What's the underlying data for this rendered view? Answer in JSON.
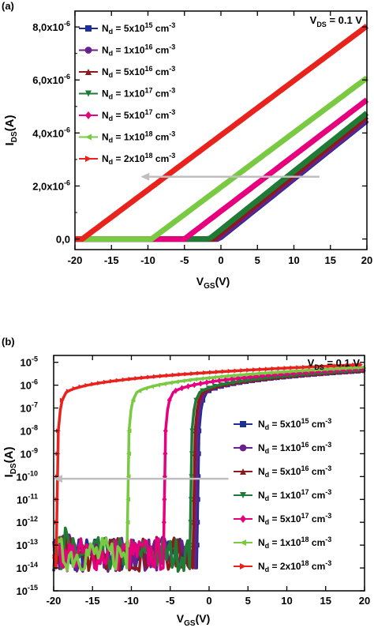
{
  "chart_data": [
    {
      "panel": "(a)",
      "type": "line",
      "xlabel": "V_GS(V)",
      "ylabel": "I_DS(A)",
      "annotation": "V_DS = 0.1 V",
      "xlim": [
        -20,
        20
      ],
      "ylim": [
        -4e-07,
        8.6e-06
      ],
      "yscale": "linear",
      "xticks": [
        -20,
        -15,
        -10,
        -5,
        0,
        5,
        10,
        15,
        20
      ],
      "xtick_labels": [
        "-20",
        "-15",
        "-10",
        "-5",
        "0",
        "5",
        "10",
        "15",
        "20"
      ],
      "yticks": [
        0,
        2e-06,
        4e-06,
        6e-06,
        8e-06
      ],
      "ytick_labels": [
        {
          "mant": "0,0",
          "exp": ""
        },
        {
          "mant": "2,0x10",
          "exp": "-6"
        },
        {
          "mant": "4,0x10",
          "exp": "-6"
        },
        {
          "mant": "6,0x10",
          "exp": "-6"
        },
        {
          "mant": "8,0x10",
          "exp": "-6"
        }
      ],
      "legend_position": "top-left",
      "arrow": {
        "from": [
          13.5,
          2.35e-06
        ],
        "to": [
          -11,
          2.35e-06
        ],
        "color": "#bfbfbf"
      },
      "series": [
        {
          "name": "Nd = 5x10^15 cm^-3",
          "legend": {
            "pre": "N",
            "sub": "d",
            "mid": " = 5x10",
            "sup": "15",
            "post": " cm",
            "sup2": "-3"
          },
          "color": "#1f2f8f",
          "marker": "square",
          "vth": -0.3,
          "slope": 2.2e-07
        },
        {
          "name": "Nd = 1x10^16 cm^-3",
          "legend": {
            "pre": "N",
            "sub": "d",
            "mid": " = 1x10",
            "sup": "16",
            "post": " cm",
            "sup2": "-3"
          },
          "color": "#6a1f8f",
          "marker": "circle",
          "vth": -0.5,
          "slope": 2.2e-07
        },
        {
          "name": "Nd = 5x10^16 cm^-3",
          "legend": {
            "pre": "N",
            "sub": "d",
            "mid": " = 5x10",
            "sup": "16",
            "post": " cm",
            "sup2": "-3"
          },
          "color": "#8b1a1a",
          "marker": "triangle-up",
          "vth": -1.0,
          "slope": 2.2e-07
        },
        {
          "name": "Nd = 1x10^17 cm^-3",
          "legend": {
            "pre": "N",
            "sub": "d",
            "mid": " = 1x10",
            "sup": "17",
            "post": " cm",
            "sup2": "-3"
          },
          "color": "#1e7a34",
          "marker": "triangle-down",
          "vth": -1.6,
          "slope": 2.2e-07
        },
        {
          "name": "Nd = 5x10^17 cm^-3",
          "legend": {
            "pre": "N",
            "sub": "d",
            "mid": " = 5x10",
            "sup": "17",
            "post": " cm",
            "sup2": "-3"
          },
          "color": "#e6007e",
          "marker": "diamond",
          "vth": -5.0,
          "slope": 2.1e-07
        },
        {
          "name": "Nd = 1x10^18 cm^-3",
          "legend": {
            "pre": "N",
            "sub": "d",
            "mid": " = 1x10",
            "sup": "18",
            "post": " cm",
            "sup2": "-3"
          },
          "color": "#7ac943",
          "marker": "triangle-left",
          "vth": -9.5,
          "slope": 2.06e-07
        },
        {
          "name": "Nd = 2x10^18 cm^-3",
          "legend": {
            "pre": "N",
            "sub": "d",
            "mid": " = 2x10",
            "sup": "18",
            "post": " cm",
            "sup2": "-3"
          },
          "color": "#e8231e",
          "marker": "triangle-right",
          "vth": -19.0,
          "slope": 2.06e-07
        }
      ]
    },
    {
      "panel": "(b)",
      "type": "line",
      "xlabel": "V_GS(V)",
      "ylabel": "I_DS(A)",
      "annotation": "V_DS = 0.1 V",
      "xlim": [
        -20,
        20
      ],
      "ylim": [
        1e-15,
        2e-05
      ],
      "yscale": "log",
      "xticks": [
        -20,
        -15,
        -10,
        -5,
        0,
        5,
        10,
        15,
        20
      ],
      "xtick_labels": [
        "-20",
        "-15",
        "-10",
        "-5",
        "0",
        "5",
        "10",
        "15",
        "20"
      ],
      "yticks_exp": [
        -15,
        -14,
        -13,
        -12,
        -11,
        -10,
        -9,
        -8,
        -7,
        -6,
        -5
      ],
      "legend_position": "center-right",
      "arrow": {
        "from": [
          2.5,
          8e-11
        ],
        "to": [
          -20,
          8e-11
        ],
        "color": "#bfbfbf"
      },
      "series": [
        {
          "name": "Nd = 5x10^15 cm^-3",
          "legend": {
            "pre": "N",
            "sub": "d",
            "mid": " = 5x10",
            "sup": "15",
            "post": " cm",
            "sup2": "-3"
          },
          "color": "#1f2f8f",
          "marker": "square",
          "von": -1.3,
          "ion20": 4.3e-06
        },
        {
          "name": "Nd = 1x10^16 cm^-3",
          "legend": {
            "pre": "N",
            "sub": "d",
            "mid": " = 1x10",
            "sup": "16",
            "post": " cm",
            "sup2": "-3"
          },
          "color": "#6a1f8f",
          "marker": "circle",
          "von": -1.5,
          "ion20": 4.4e-06
        },
        {
          "name": "Nd = 5x10^16 cm^-3",
          "legend": {
            "pre": "N",
            "sub": "d",
            "mid": " = 5x10",
            "sup": "16",
            "post": " cm",
            "sup2": "-3"
          },
          "color": "#8b1a1a",
          "marker": "triangle-up",
          "vth": 0,
          "von": -1.8,
          "ion20": 4.5e-06
        },
        {
          "name": "Nd = 1x10^17 cm^-3",
          "legend": {
            "pre": "N",
            "sub": "d",
            "mid": " = 1x10",
            "sup": "17",
            "post": " cm",
            "sup2": "-3"
          },
          "color": "#1e7a34",
          "marker": "triangle-down",
          "von": -2.2,
          "ion20": 4.6e-06
        },
        {
          "name": "Nd = 5x10^17 cm^-3",
          "legend": {
            "pre": "N",
            "sub": "d",
            "mid": " = 5x10",
            "sup": "17",
            "post": " cm",
            "sup2": "-3"
          },
          "color": "#e6007e",
          "marker": "diamond",
          "von": -5.6,
          "ion20": 5.3e-06
        },
        {
          "name": "Nd = 1x10^18 cm^-3",
          "legend": {
            "pre": "N",
            "sub": "d",
            "mid": " = 1x10",
            "sup": "18",
            "post": " cm",
            "sup2": "-3"
          },
          "color": "#7ac943",
          "marker": "triangle-left",
          "von": -10.3,
          "ion20": 6.1e-06
        },
        {
          "name": "Nd = 2x10^18 cm^-3",
          "legend": {
            "pre": "N",
            "sub": "d",
            "mid": " = 2x10",
            "sup": "18",
            "post": " cm",
            "sup2": "-3"
          },
          "color": "#e8231e",
          "marker": "triangle-right",
          "von": -19.4,
          "ion20": 8e-06
        }
      ]
    }
  ]
}
